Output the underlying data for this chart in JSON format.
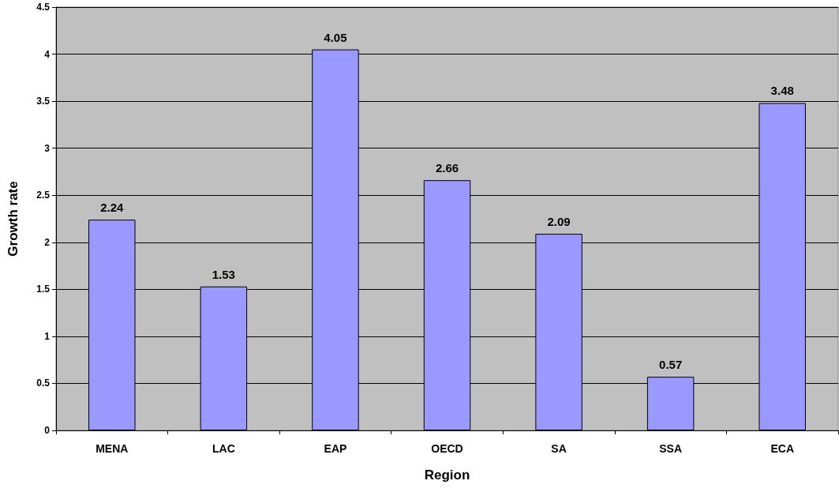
{
  "chart_data": {
    "type": "bar",
    "xlabel": "Region",
    "ylabel": "Growth rate",
    "categories": [
      "MENA",
      "LAC",
      "EAP",
      "OECD",
      "SA",
      "SSA",
      "ECA"
    ],
    "values": [
      2.24,
      1.53,
      4.05,
      2.66,
      2.09,
      0.57,
      3.48
    ],
    "color": "#9999ff",
    "ylim": [
      0,
      4.5
    ],
    "yticks": [
      0,
      0.5,
      1,
      1.5,
      2,
      2.5,
      3,
      3.5,
      4,
      4.5
    ],
    "grid": "y",
    "data_labels": true
  }
}
